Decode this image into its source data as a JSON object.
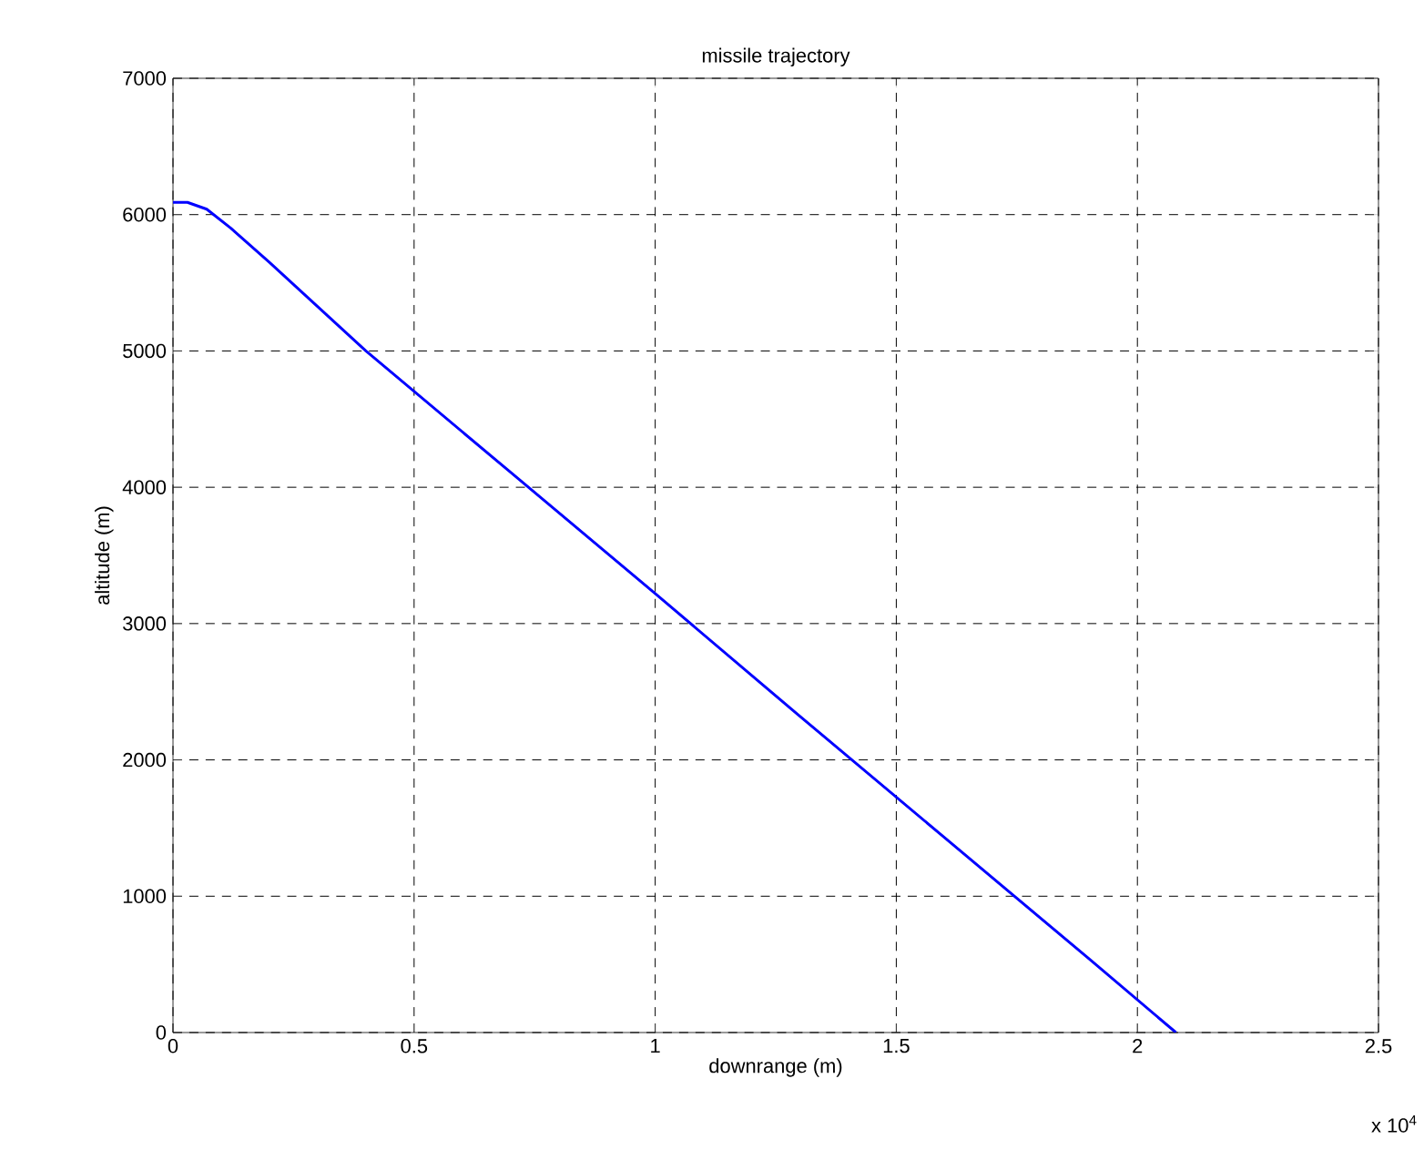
{
  "chart_data": {
    "type": "line",
    "title": "missile trajectory",
    "xlabel": "downrange (m)",
    "ylabel": "altitude (m)",
    "annotations": [
      "x 10$^{4}$"
    ],
    "series": [
      {
        "color": "#0000ff",
        "x": [
          0,
          0.03,
          0.07,
          0.12,
          0.2,
          0.4,
          0.7,
          1.0,
          1.3,
          1.6,
          1.9,
          2.08
        ],
        "values": [
          6090,
          6090,
          6040,
          5900,
          5650,
          5000,
          4110,
          3220,
          2320,
          1430,
          540,
          0
        ]
      }
    ],
    "xlim": [
      0,
      2.5
    ],
    "ylim": [
      0,
      7000
    ],
    "xticks": [
      0,
      0.5,
      1,
      1.5,
      2,
      2.5
    ],
    "yticks": [
      0,
      1000,
      2000,
      3000,
      4000,
      5000,
      6000,
      7000
    ],
    "grid": true,
    "line_style": "solid",
    "marker": "none"
  }
}
